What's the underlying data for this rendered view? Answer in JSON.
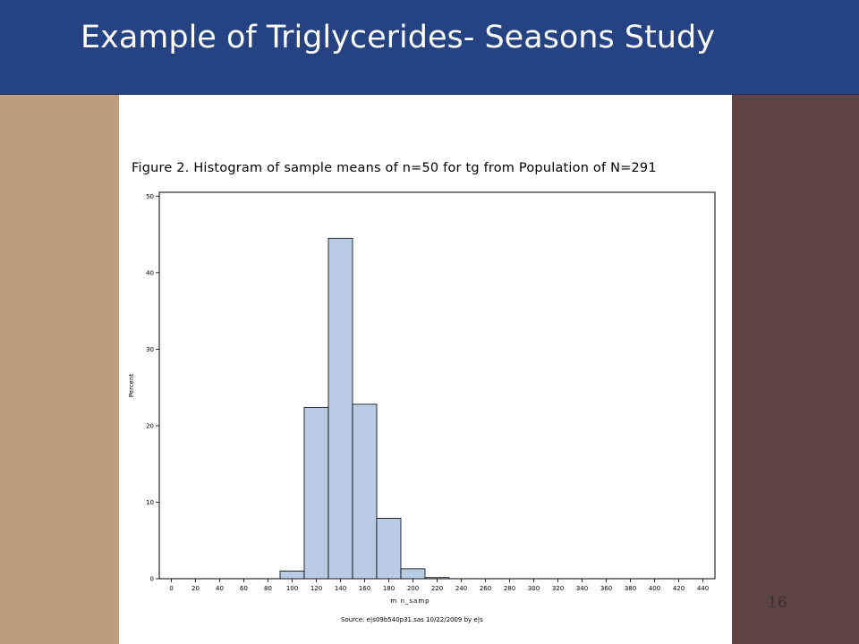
{
  "slide": {
    "title": "Example of Triglycerides- Seasons Study",
    "page_number": "16",
    "colors": {
      "title_bar": "#254383",
      "left_panel": "#bf9e7f",
      "right_panel": "#5e4344",
      "bar_fill": "#b9cce4"
    }
  },
  "chart_data": {
    "type": "bar",
    "title": "Figure 2.  Histogram of sample means of n=50 for tg from Population of N=291",
    "xlabel": "m n_samp",
    "ylabel": "Percent",
    "source": "Source: e|s09b540p31.sas 10/22/2009 by e|s",
    "x_ticks": [
      "0",
      "20",
      "40",
      "60",
      "80",
      "100",
      "120",
      "140",
      "160",
      "180",
      "200",
      "220",
      "240",
      "260",
      "280",
      "300",
      "320",
      "340",
      "360",
      "380",
      "400",
      "420",
      "440"
    ],
    "y_ticks": [
      "0",
      "10",
      "20",
      "30",
      "40",
      "50"
    ],
    "xlim": [
      -10,
      450
    ],
    "ylim": [
      0,
      50.5
    ],
    "grid": false,
    "bin_width": 20,
    "bins": [
      {
        "center": 100,
        "value": 1.0
      },
      {
        "center": 120,
        "value": 22.4
      },
      {
        "center": 140,
        "value": 44.5
      },
      {
        "center": 160,
        "value": 22.8
      },
      {
        "center": 180,
        "value": 7.9
      },
      {
        "center": 200,
        "value": 1.3
      },
      {
        "center": 220,
        "value": 0.15
      }
    ]
  }
}
